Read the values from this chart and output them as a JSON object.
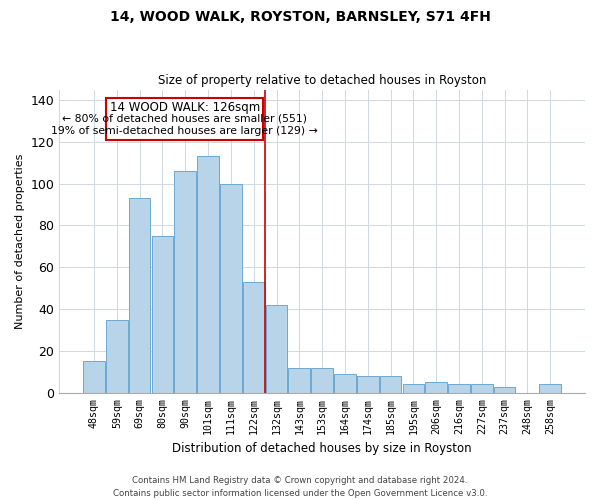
{
  "title": "14, WOOD WALK, ROYSTON, BARNSLEY, S71 4FH",
  "subtitle": "Size of property relative to detached houses in Royston",
  "xlabel": "Distribution of detached houses by size in Royston",
  "ylabel": "Number of detached properties",
  "bar_labels": [
    "48sqm",
    "59sqm",
    "69sqm",
    "80sqm",
    "90sqm",
    "101sqm",
    "111sqm",
    "122sqm",
    "132sqm",
    "143sqm",
    "153sqm",
    "164sqm",
    "174sqm",
    "185sqm",
    "195sqm",
    "206sqm",
    "216sqm",
    "227sqm",
    "237sqm",
    "248sqm",
    "258sqm"
  ],
  "bar_values": [
    15,
    35,
    93,
    75,
    106,
    113,
    100,
    53,
    42,
    12,
    12,
    9,
    8,
    8,
    4,
    5,
    4,
    4,
    3,
    0,
    4
  ],
  "bar_color": "#b8d4e8",
  "bar_edge_color": "#6aaad4",
  "marker_index": 7,
  "marker_label": "14 WOOD WALK: 126sqm",
  "annotation_line1": "← 80% of detached houses are smaller (551)",
  "annotation_line2": "19% of semi-detached houses are larger (129) →",
  "marker_color": "#cc0000",
  "box_color": "#cc0000",
  "ylim": [
    0,
    145
  ],
  "yticks": [
    0,
    20,
    40,
    60,
    80,
    100,
    120,
    140
  ],
  "footer_line1": "Contains HM Land Registry data © Crown copyright and database right 2024.",
  "footer_line2": "Contains public sector information licensed under the Open Government Licence v3.0.",
  "background_color": "#ffffff",
  "grid_color": "#d0d8e0"
}
